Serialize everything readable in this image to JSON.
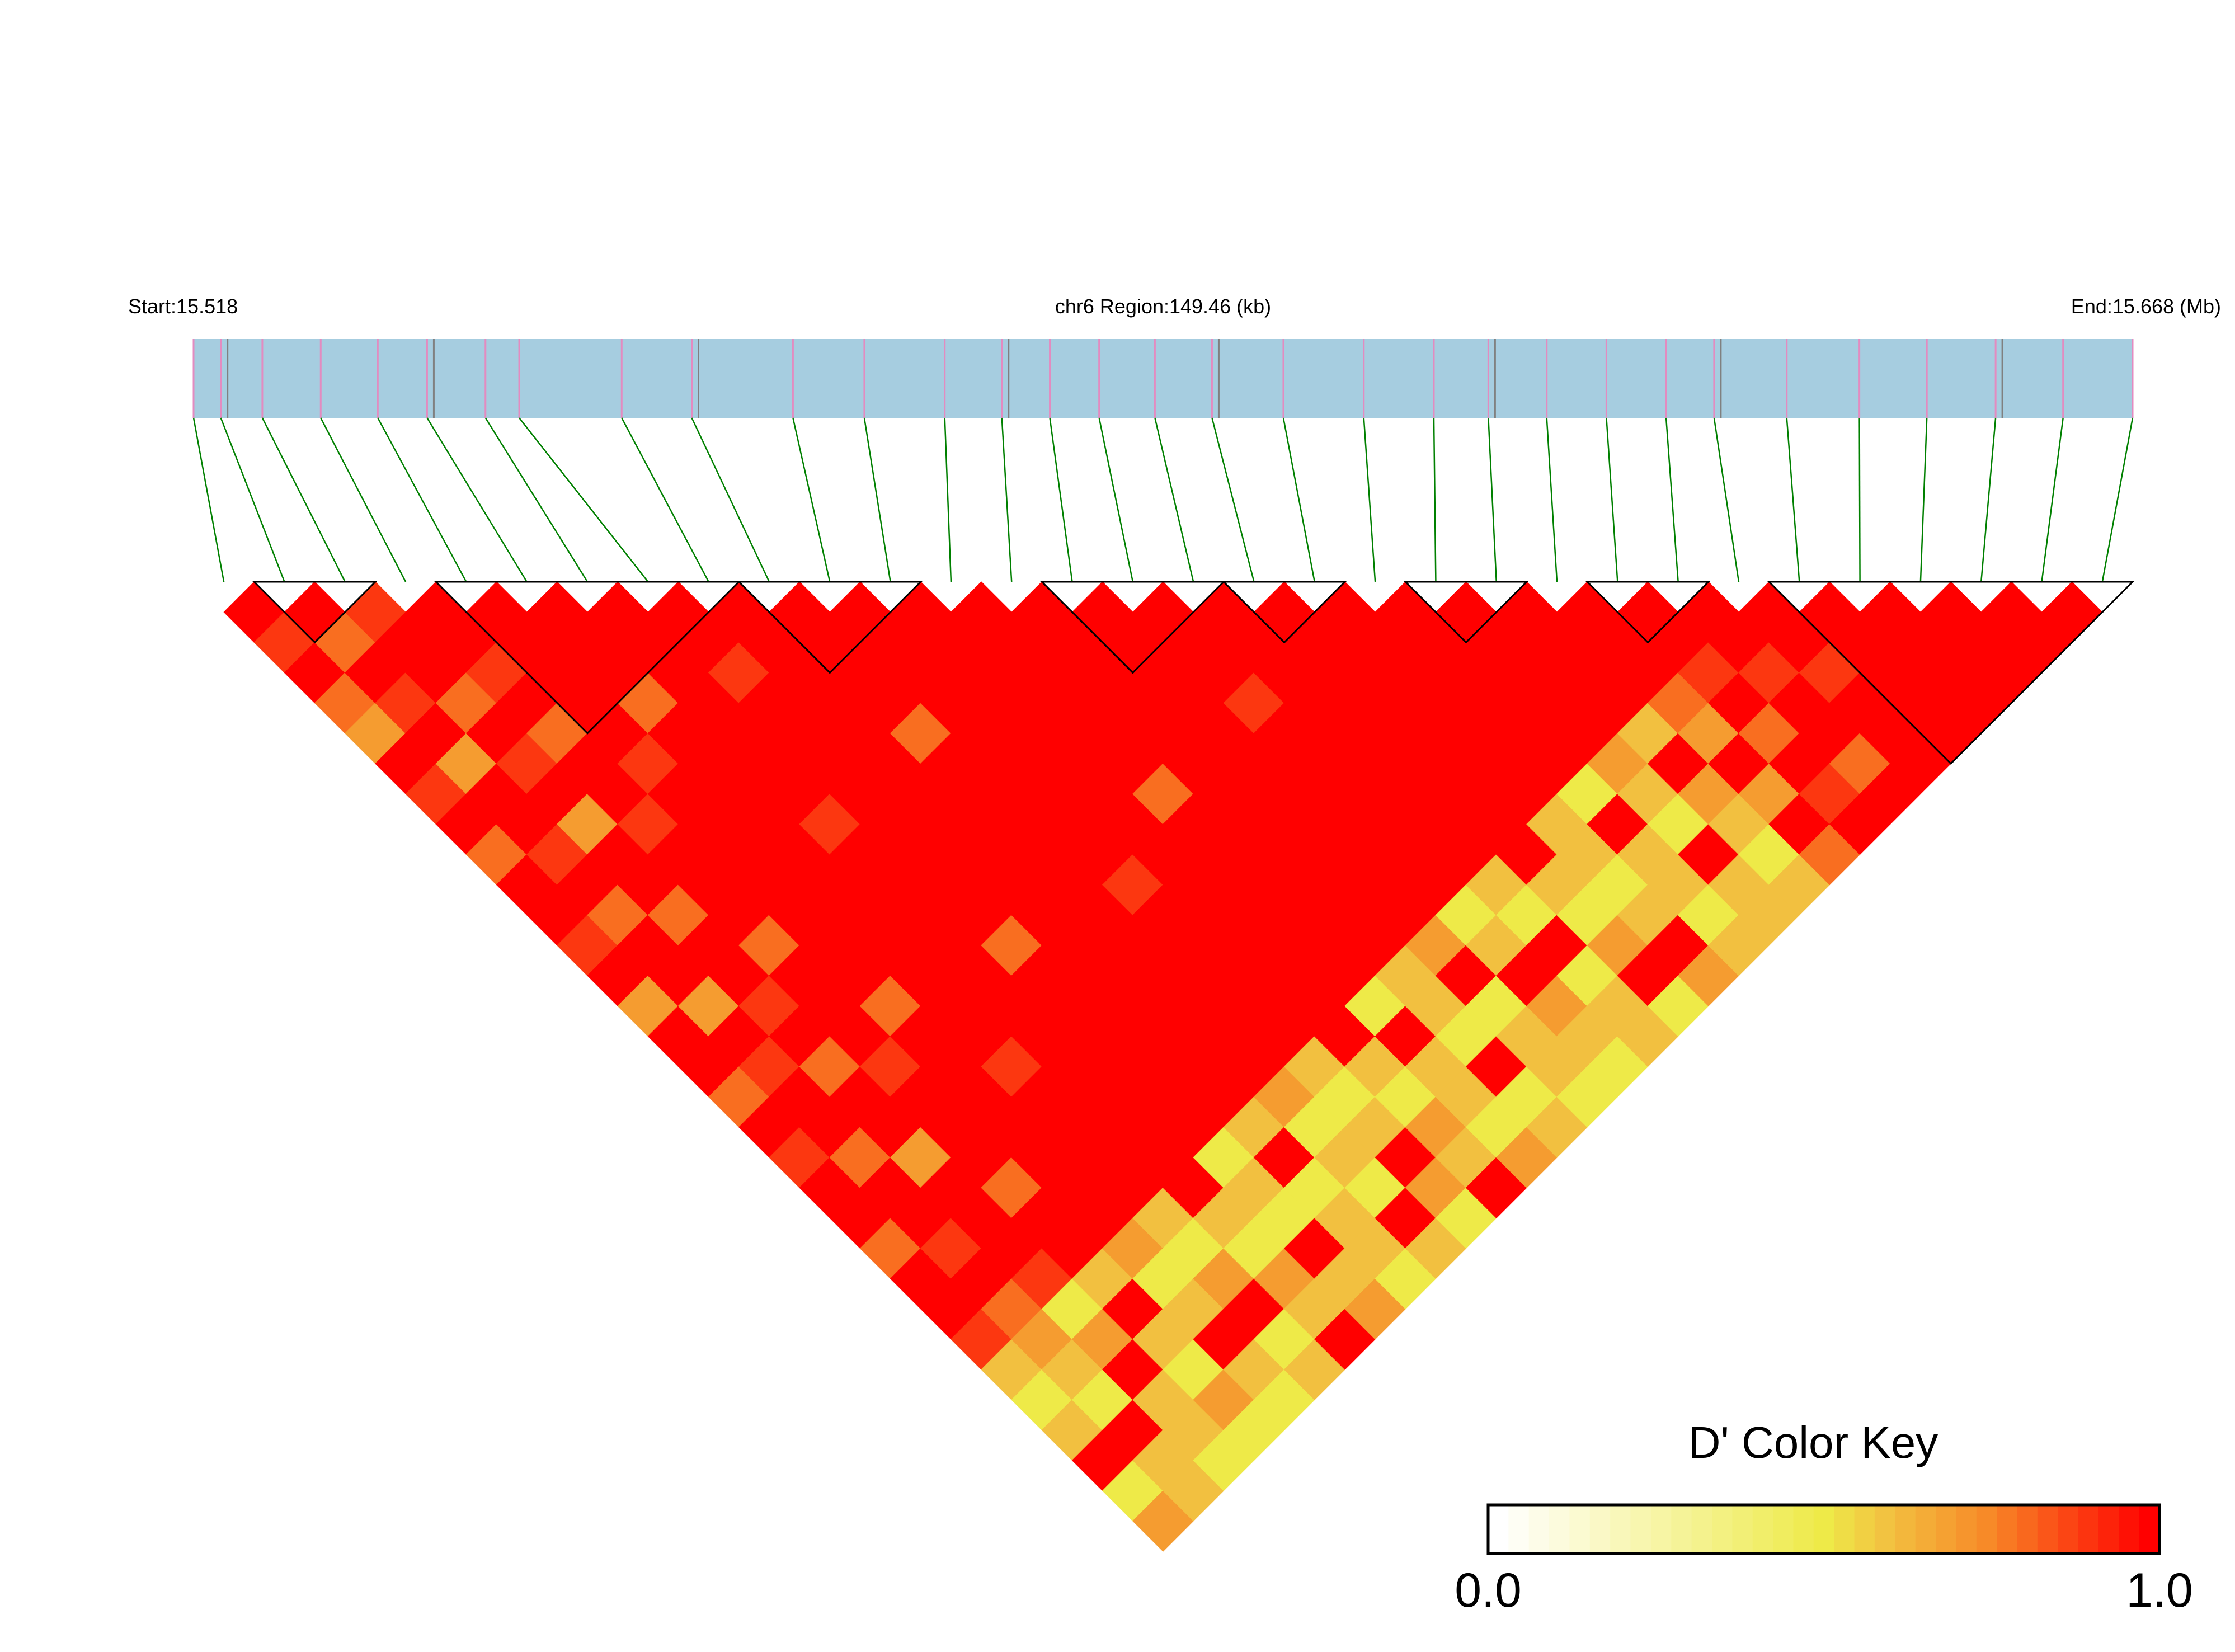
{
  "chart_data": {
    "type": "heatmap",
    "subtype": "LD triangle heatmap",
    "header": {
      "start_label": "Start:15.518",
      "region_label": "chr6 Region:149.46 (kb)",
      "end_label": "End:15.668 (Mb)"
    },
    "region": {
      "chrom": "chr6",
      "start_mb": 15.518,
      "end_mb": 15.668,
      "length_kb": 149.46
    },
    "snp_positions_kb": [
      0,
      2.1,
      5.3,
      9.8,
      14.2,
      18.0,
      22.5,
      25.1,
      33.0,
      38.4,
      46.2,
      51.7,
      57.9,
      62.3,
      66.0,
      69.8,
      74.1,
      78.5,
      84.0,
      90.2,
      95.6,
      99.8,
      104.3,
      108.9,
      113.5,
      117.2,
      122.8,
      128.4,
      133.6,
      138.9,
      144.1,
      149.46
    ],
    "dprime_encoding": "row i lists D' for SNP pairs (i, i+1..n-1) in tenths; 'a' = 1.0",
    "dprime_rows": [
      "a9a87a9a8aa9a7aa8a9aa8aa9656a57",
      "a8a9a7aa9a8aa7a9aa8aa9a8765a66",
      "9aa8a9a7aa8aa9a8aa7aaa957a665",
      "aa9a8aa9aaa8aaa9aaa8aa6a6575",
      "aaaaa9aaaaaaa8aaaaaaa756a65",
      "aaa8aaaaaaaaaaa9aaaa657a56",
      "aaaaaaa9aaaaaaaaaaaa6576a",
      "aa9aaaaaaaa8aaaaaa565a67",
      "aaaaaaaaaaaaaaaaa6a5665",
      "aaaa8aaaaaaaaaaa7565a6",
      "aaaaaaaaa9aaaaa656a75",
      "aaaaaaaaaaaaaaa6576a",
      "aaaaaa8aaaaaa5a6657",
      "aaaaaaaaaaaa665a56",
      "aaaaaaaaaaa7a5665",
      "aaa9aaaaaa56a765",
      "aaaaaaaaa65a566",
      "aaaaaaaaa657a5",
      "aaaaaaa6656a7",
      "aaaaaa5a6656",
      "aaaaa765a66",
      "aaaa6a7656",
      "aaa87a7a8",
      "aa9a8a9a",
      "aa9aa8a",
      "aa9aaa",
      "aaaaa",
      "aaaa",
      "aaa",
      "aa",
      "a"
    ],
    "ld_blocks": [
      [
        1,
        2
      ],
      [
        4,
        8
      ],
      [
        9,
        11
      ],
      [
        14,
        16
      ],
      [
        17,
        18
      ],
      [
        20,
        21
      ],
      [
        23,
        24
      ],
      [
        26,
        31
      ]
    ],
    "color_key": {
      "title": "D' Color Key",
      "min_label": "0.0",
      "max_label": "1.0",
      "range": [
        0,
        1
      ],
      "stops": [
        {
          "v": 0.0,
          "color": "#FFFFFF"
        },
        {
          "v": 0.5,
          "color": "#EEEA48"
        },
        {
          "v": 0.6,
          "color": "#F2C040"
        },
        {
          "v": 0.75,
          "color": "#F78A28"
        },
        {
          "v": 1.0,
          "color": "#FF0000"
        }
      ]
    },
    "colors": {
      "gene_track": "#A6CDE0",
      "snp_marker": "#E38BC0",
      "feature_marker": "#808080",
      "connector": "#008000",
      "block_outline": "#000000"
    }
  }
}
